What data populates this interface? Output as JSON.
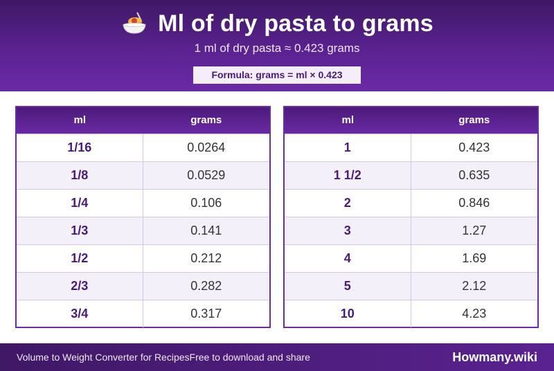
{
  "header": {
    "icon": "spaghetti-icon",
    "title": "Ml of dry pasta to grams",
    "subtitle": "1 ml of dry pasta ≈ 0.423 grams",
    "formula": "Formula: grams = ml × 0.423"
  },
  "tables": {
    "left": {
      "col1": "ml",
      "col2": "grams",
      "rows": [
        {
          "ml": "1/16",
          "grams": "0.0264"
        },
        {
          "ml": "1/8",
          "grams": "0.0529"
        },
        {
          "ml": "1/4",
          "grams": "0.106"
        },
        {
          "ml": "1/3",
          "grams": "0.141"
        },
        {
          "ml": "1/2",
          "grams": "0.212"
        },
        {
          "ml": "2/3",
          "grams": "0.282"
        },
        {
          "ml": "3/4",
          "grams": "0.317"
        }
      ]
    },
    "right": {
      "col1": "ml",
      "col2": "grams",
      "rows": [
        {
          "ml": "1",
          "grams": "0.423"
        },
        {
          "ml": "1 1/2",
          "grams": "0.635"
        },
        {
          "ml": "2",
          "grams": "0.846"
        },
        {
          "ml": "3",
          "grams": "1.27"
        },
        {
          "ml": "4",
          "grams": "1.69"
        },
        {
          "ml": "5",
          "grams": "2.12"
        },
        {
          "ml": "10",
          "grams": "4.23"
        }
      ]
    }
  },
  "footer": {
    "text": "Volume to Weight Converter for RecipesFree to download and share",
    "brand": "Howmany.wiki"
  },
  "colors": {
    "accent": "#5a2290",
    "accent_dark": "#3f1866",
    "row_alt": "#f4f0fa"
  }
}
